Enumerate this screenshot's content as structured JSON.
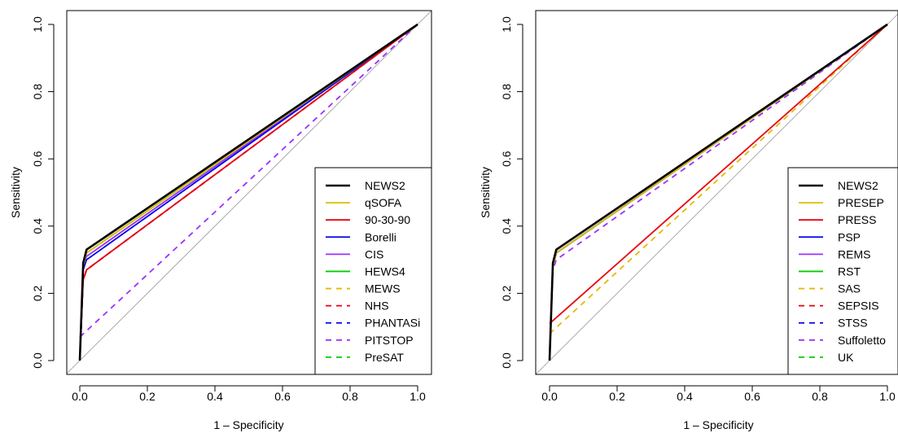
{
  "chart_data": [
    {
      "type": "line",
      "xlabel": "1 – Specificity",
      "ylabel": "Sensitivity",
      "xlim": [
        0,
        1
      ],
      "ylim": [
        0,
        1
      ],
      "xticks": [
        "0.0",
        "0.2",
        "0.4",
        "0.6",
        "0.8",
        "1.0"
      ],
      "yticks": [
        "0.0",
        "0.2",
        "0.4",
        "0.6",
        "0.8",
        "1.0"
      ],
      "reference_line": "diagonal",
      "grid": false,
      "legend_position": "bottom-right",
      "series": [
        {
          "name": "NEWS2",
          "color": "#000000",
          "dash": "solid",
          "x": [
            0,
            0.01,
            0.02,
            1
          ],
          "y": [
            0,
            0.29,
            0.33,
            1
          ]
        },
        {
          "name": "qSOFA",
          "color": "#DDC000",
          "dash": "solid",
          "x": [
            0,
            0.01,
            0.02,
            1
          ],
          "y": [
            0,
            0.28,
            0.32,
            1
          ]
        },
        {
          "name": "90-30-90",
          "color": "#E8000B",
          "dash": "solid",
          "x": [
            0,
            0.01,
            0.02,
            1
          ],
          "y": [
            0,
            0.24,
            0.27,
            1
          ]
        },
        {
          "name": "Borelli",
          "color": "#0000EE",
          "dash": "solid",
          "x": [
            0,
            0.01,
            0.02,
            1
          ],
          "y": [
            0,
            0.27,
            0.3,
            1
          ]
        },
        {
          "name": "CIS",
          "color": "#9B30FF",
          "dash": "solid",
          "x": [
            0,
            0.01,
            0.02,
            1
          ],
          "y": [
            0,
            0.28,
            0.31,
            1
          ]
        },
        {
          "name": "HEWS4",
          "color": "#00CD00",
          "dash": "solid",
          "x": [
            0,
            0.01,
            0.02,
            1
          ],
          "y": [
            0,
            0.28,
            0.32,
            1
          ]
        },
        {
          "name": "MEWS",
          "color": "#E6B800",
          "dash": "dashed",
          "x": [
            0,
            0.01,
            0.02,
            1
          ],
          "y": [
            0,
            0.28,
            0.31,
            1
          ]
        },
        {
          "name": "NHS",
          "color": "#E8000B",
          "dash": "dashed",
          "x": [
            0,
            0.01,
            0.02,
            1
          ],
          "y": [
            0,
            0.24,
            0.27,
            1
          ]
        },
        {
          "name": "PHANTASi",
          "color": "#0000EE",
          "dash": "dashed",
          "x": [
            0,
            0.01,
            0.02,
            1
          ],
          "y": [
            0,
            0.24,
            0.27,
            1
          ]
        },
        {
          "name": "PITSTOP",
          "color": "#9B30FF",
          "dash": "dashed",
          "x": [
            0,
            1
          ],
          "y": [
            0.07,
            1
          ]
        },
        {
          "name": "PreSAT",
          "color": "#00CD00",
          "dash": "dashed",
          "x": [
            0,
            0.01,
            0.02,
            1
          ],
          "y": [
            0,
            0.28,
            0.32,
            1
          ]
        }
      ]
    },
    {
      "type": "line",
      "xlabel": "1 – Specificity",
      "ylabel": "Sensitivity",
      "xlim": [
        0,
        1
      ],
      "ylim": [
        0,
        1
      ],
      "xticks": [
        "0.0",
        "0.2",
        "0.4",
        "0.6",
        "0.8",
        "1.0"
      ],
      "yticks": [
        "0.0",
        "0.2",
        "0.4",
        "0.6",
        "0.8",
        "1.0"
      ],
      "reference_line": "diagonal",
      "grid": false,
      "legend_position": "bottom-right",
      "series": [
        {
          "name": "NEWS2",
          "color": "#000000",
          "dash": "solid",
          "x": [
            0,
            0.01,
            0.02,
            1
          ],
          "y": [
            0,
            0.29,
            0.33,
            1
          ]
        },
        {
          "name": "PRESEP",
          "color": "#DDC000",
          "dash": "solid",
          "x": [
            0,
            0.01,
            0.02,
            1
          ],
          "y": [
            0,
            0.28,
            0.32,
            1
          ]
        },
        {
          "name": "PRESS",
          "color": "#E8000B",
          "dash": "solid",
          "x": [
            0,
            1
          ],
          "y": [
            0.11,
            1
          ]
        },
        {
          "name": "PSP",
          "color": "#0000EE",
          "dash": "solid",
          "x": [
            0,
            0.01,
            0.02,
            1
          ],
          "y": [
            0,
            0.28,
            0.32,
            1
          ]
        },
        {
          "name": "REMS",
          "color": "#9B30FF",
          "dash": "solid",
          "x": [
            0,
            0.01,
            0.02,
            1
          ],
          "y": [
            0,
            0.28,
            0.32,
            1
          ]
        },
        {
          "name": "RST",
          "color": "#00CD00",
          "dash": "solid",
          "x": [
            0,
            0.01,
            0.02,
            1
          ],
          "y": [
            0,
            0.28,
            0.32,
            1
          ]
        },
        {
          "name": "SAS",
          "color": "#E6B800",
          "dash": "dashed",
          "x": [
            0,
            1
          ],
          "y": [
            0.08,
            1
          ]
        },
        {
          "name": "SEPSIS",
          "color": "#E8000B",
          "dash": "dashed",
          "x": [
            0,
            0.01,
            0.02,
            1
          ],
          "y": [
            0,
            0.28,
            0.32,
            1
          ]
        },
        {
          "name": "STSS",
          "color": "#0000EE",
          "dash": "dashed",
          "x": [
            0,
            0.01,
            0.02,
            1
          ],
          "y": [
            0,
            0.28,
            0.32,
            1
          ]
        },
        {
          "name": "Suffoletto",
          "color": "#9B30FF",
          "dash": "dashed",
          "x": [
            0,
            0.01,
            0.02,
            1
          ],
          "y": [
            0,
            0.27,
            0.3,
            1
          ]
        },
        {
          "name": "UK",
          "color": "#00CD00",
          "dash": "dashed",
          "x": [
            0,
            0.01,
            0.02,
            1
          ],
          "y": [
            0,
            0.28,
            0.32,
            1
          ]
        }
      ]
    }
  ]
}
